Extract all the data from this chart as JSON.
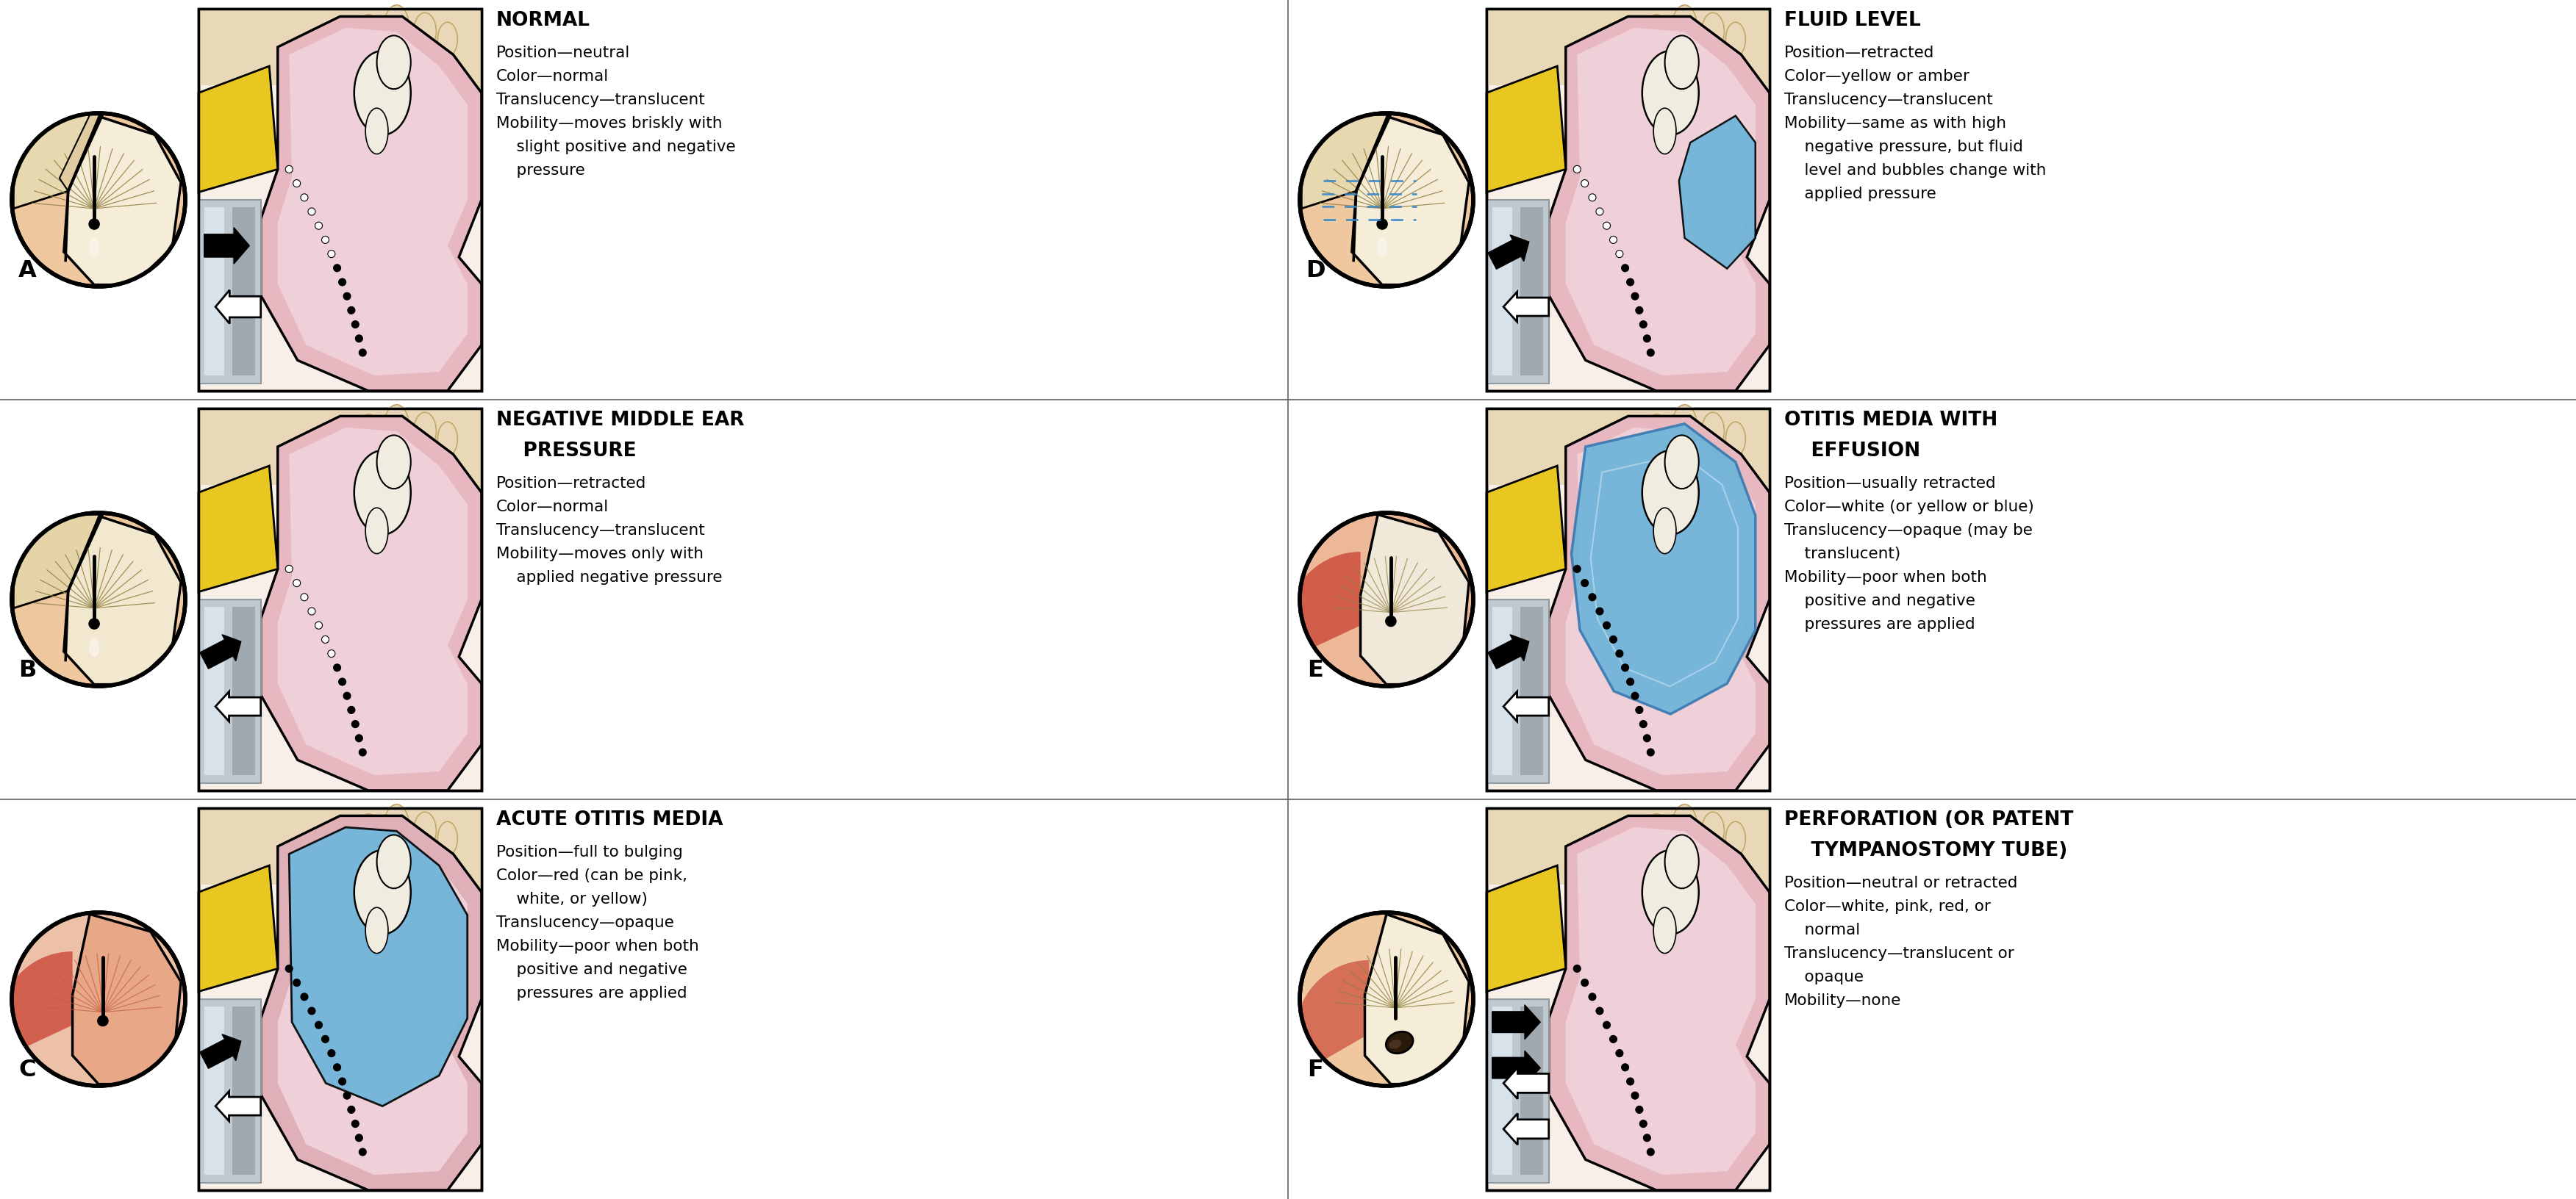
{
  "bg_color": "#ffffff",
  "panels": [
    {
      "label": "A",
      "title_lines": [
        "NORMAL"
      ],
      "body_lines": [
        "Position—neutral",
        "Color—normal",
        "Translucency—translucent",
        "Mobility—moves briskly with",
        "    slight positive and negative",
        "    pressure"
      ],
      "circle_type": "normal",
      "cross_type": "normal",
      "arrow_type": "big_right_white_left"
    },
    {
      "label": "B",
      "title_lines": [
        "NEGATIVE MIDDLE EAR",
        "    PRESSURE"
      ],
      "body_lines": [
        "Position—retracted",
        "Color—normal",
        "Translucency—translucent",
        "Mobility—moves only with",
        "    applied negative pressure"
      ],
      "circle_type": "normal_b",
      "cross_type": "retracted",
      "arrow_type": "small_diag_white_left"
    },
    {
      "label": "C",
      "title_lines": [
        "ACUTE OTITIS MEDIA"
      ],
      "body_lines": [
        "Position—full to bulging",
        "Color—red (can be pink,",
        "    white, or yellow)",
        "Translucency—opaque",
        "Mobility—poor when both",
        "    positive and negative",
        "    pressures are applied"
      ],
      "circle_type": "red_c",
      "cross_type": "blue_blob_c",
      "arrow_type": "small_diag_white_left_dashed"
    },
    {
      "label": "D",
      "title_lines": [
        "FLUID LEVEL"
      ],
      "body_lines": [
        "Position—retracted",
        "Color—yellow or amber",
        "Translucency—translucent",
        "Mobility—same as with high",
        "    negative pressure, but fluid",
        "    level and bubbles change with",
        "    applied pressure"
      ],
      "circle_type": "fluid_d",
      "cross_type": "fluid_level_d",
      "arrow_type": "small_diag_white_left"
    },
    {
      "label": "E",
      "title_lines": [
        "OTITIS MEDIA WITH",
        "    EFFUSION"
      ],
      "body_lines": [
        "Position—usually retracted",
        "Color—white (or yellow or blue)",
        "Translucency—opaque (may be",
        "    translucent)",
        "Mobility—poor when both",
        "    positive and negative",
        "    pressures are applied"
      ],
      "circle_type": "red_e",
      "cross_type": "blue_large_e",
      "arrow_type": "small_diag_white_left"
    },
    {
      "label": "F",
      "title_lines": [
        "PERFORATION (OR PATENT",
        "    TYMPANOSTOMY TUBE)"
      ],
      "body_lines": [
        "Position—neutral or retracted",
        "Color—white, pink, red, or",
        "    normal",
        "Translucency—translucent or",
        "    opaque",
        "Mobility—none"
      ],
      "circle_type": "perforation_f",
      "cross_type": "normal_f",
      "arrow_type": "double_large"
    }
  ]
}
